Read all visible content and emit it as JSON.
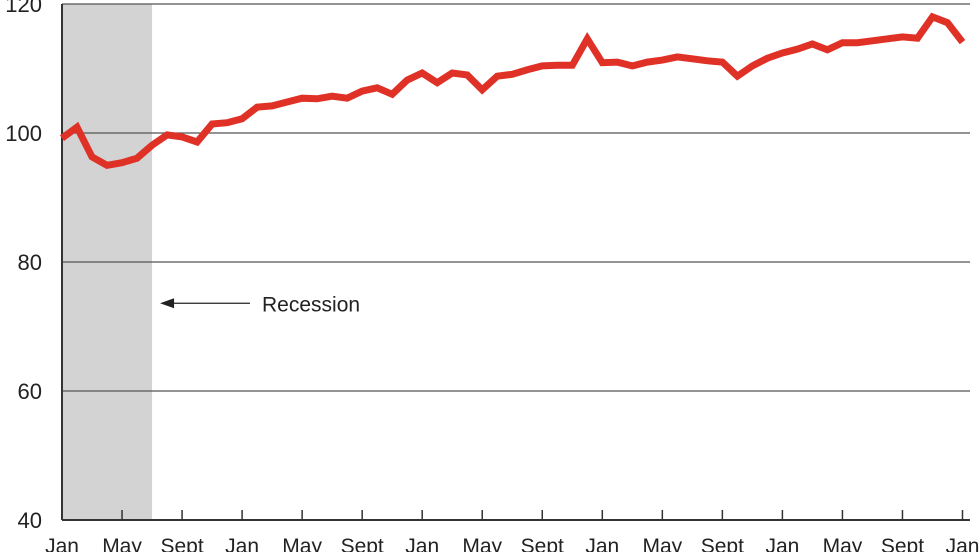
{
  "chart_data": {
    "type": "line",
    "title": "",
    "xlabel": "",
    "ylabel": "",
    "ylim": [
      40,
      120
    ],
    "yticks": [
      40,
      60,
      80,
      100,
      120
    ],
    "xlim": [
      0,
      60.5
    ],
    "xtick_labels": [
      "Jan",
      "May",
      "Sept",
      "Jan",
      "May",
      "Sept",
      "Jan",
      "May",
      "Sept",
      "Jan",
      "May",
      "Sept",
      "Jan",
      "May",
      "Sept",
      "Jan"
    ],
    "xtick_months": [
      0,
      4,
      8,
      12,
      16,
      20,
      24,
      28,
      32,
      36,
      40,
      44,
      48,
      52,
      56,
      60
    ],
    "grid": "horizontal",
    "line_color": "#e03127",
    "shade_color": "#d3d3d3",
    "recession": {
      "start_month": 0,
      "end_month": 6,
      "label": "Recession",
      "arrow_value": 73.6
    },
    "series": [
      {
        "values": [
          99.2,
          100.9,
          96.3,
          95.0,
          95.4,
          96.1,
          98.1,
          99.7,
          99.4,
          98.6,
          101.4,
          101.6,
          102.2,
          104.0,
          104.2,
          104.8,
          105.4,
          105.3,
          105.7,
          105.4,
          106.5,
          107.0,
          106.0,
          108.2,
          109.3,
          107.8,
          109.3,
          109.0,
          106.7,
          108.8,
          109.1,
          109.8,
          110.4,
          110.5,
          110.5,
          114.6,
          110.9,
          111.0,
          110.4,
          111.0,
          111.3,
          111.8,
          111.5,
          111.2,
          111.0,
          108.8,
          110.4,
          111.6,
          112.4,
          113.0,
          113.8,
          112.9,
          114.0,
          114.0,
          114.3,
          114.6,
          114.9,
          114.7,
          118.0,
          117.1,
          114.1
        ]
      }
    ]
  }
}
